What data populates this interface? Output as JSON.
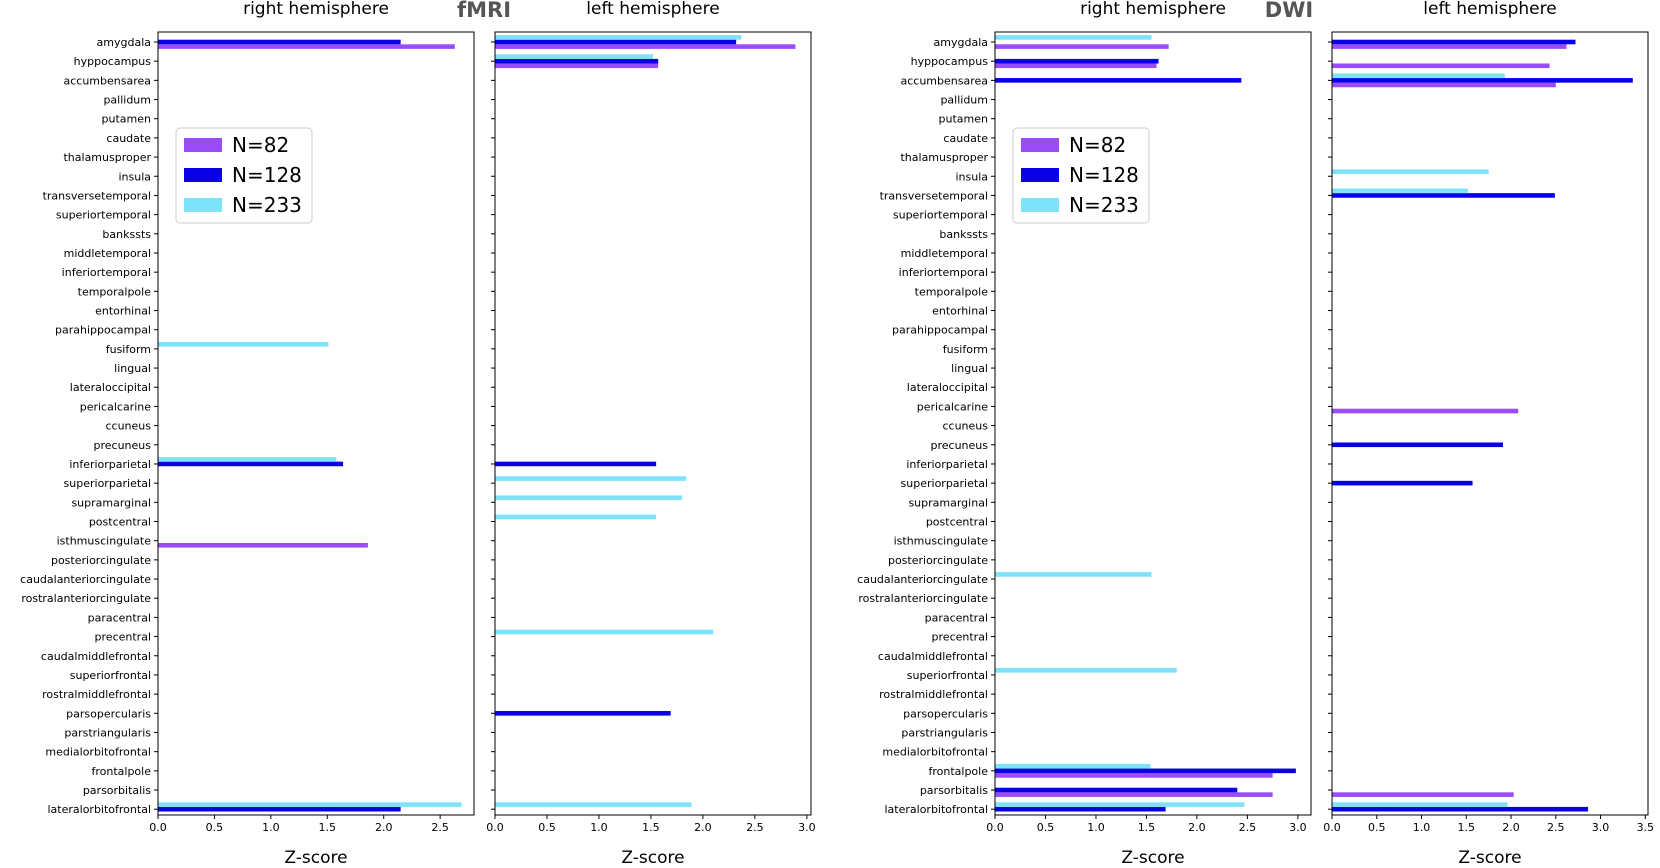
{
  "colors": {
    "N=82": "#9a4cf5",
    "N=128": "#0a00e8",
    "N=233": "#7de3fb"
  },
  "series_names": [
    "N=82",
    "N=128",
    "N=233"
  ],
  "regions": [
    "amygdala",
    "hyppocampus",
    "accumbensarea",
    "pallidum",
    "putamen",
    "caudate",
    "thalamusproper",
    "insula",
    "transversetemporal",
    "superiortemporal",
    "bankssts",
    "middletemporal",
    "inferiortemporal",
    "temporalpole",
    "entorhinal",
    "parahippocampal",
    "fusiform",
    "lingual",
    "lateraloccipital",
    "pericalcarine",
    "ccuneus",
    "precuneus",
    "inferiorparietal",
    "superiorparietal",
    "supramarginal",
    "postcentral",
    "isthmuscingulate",
    "posteriorcingulate",
    "caudalanteriorcingulate",
    "rostralanteriorcingulate",
    "paracentral",
    "precentral",
    "caudalmiddlefrontal",
    "superiorfrontal",
    "rostralmiddlefrontal",
    "parsopercularis",
    "parstriangularis",
    "medialorbitofrontal",
    "frontalpole",
    "parsorbitalis",
    "lateralorbitofrontal"
  ],
  "group_titles": {
    "fmri": "fMRI",
    "dwi": "DWI"
  },
  "chart_data": [
    {
      "type": "bar",
      "orientation": "horizontal",
      "group": "fMRI",
      "title": "right hemisphere",
      "xlabel": "Z-score",
      "xlim": [
        0,
        2.8
      ],
      "xticks": [
        0.0,
        0.5,
        1.0,
        1.5,
        2.0,
        2.5
      ],
      "show_ylabels": true,
      "legend": true,
      "bars": [
        {
          "region": "amygdala",
          "series": "N=82",
          "value": 2.63
        },
        {
          "region": "amygdala",
          "series": "N=128",
          "value": 2.15
        },
        {
          "region": "fusiform",
          "series": "N=233",
          "value": 1.51
        },
        {
          "region": "inferiorparietal",
          "series": "N=128",
          "value": 1.64
        },
        {
          "region": "inferiorparietal",
          "series": "N=233",
          "value": 1.58
        },
        {
          "region": "isthmuscingulate",
          "series": "N=82",
          "value": 1.86
        },
        {
          "region": "lateralorbitofrontal",
          "series": "N=128",
          "value": 2.15
        },
        {
          "region": "lateralorbitofrontal",
          "series": "N=233",
          "value": 2.69
        }
      ]
    },
    {
      "type": "bar",
      "orientation": "horizontal",
      "group": "fMRI",
      "title": "left hemisphere",
      "xlabel": "Z-score",
      "xlim": [
        0,
        3.04
      ],
      "xticks": [
        0.0,
        0.5,
        1.0,
        1.5,
        2.0,
        2.5,
        3.0
      ],
      "show_ylabels": false,
      "legend": false,
      "bars": [
        {
          "region": "amygdala",
          "series": "N=82",
          "value": 2.89
        },
        {
          "region": "amygdala",
          "series": "N=128",
          "value": 2.32
        },
        {
          "region": "amygdala",
          "series": "N=233",
          "value": 2.37
        },
        {
          "region": "hyppocampus",
          "series": "N=82",
          "value": 1.57
        },
        {
          "region": "hyppocampus",
          "series": "N=128",
          "value": 1.57
        },
        {
          "region": "hyppocampus",
          "series": "N=233",
          "value": 1.52
        },
        {
          "region": "inferiorparietal",
          "series": "N=128",
          "value": 1.55
        },
        {
          "region": "superiorparietal",
          "series": "N=233",
          "value": 1.84
        },
        {
          "region": "supramarginal",
          "series": "N=233",
          "value": 1.8
        },
        {
          "region": "postcentral",
          "series": "N=233",
          "value": 1.55
        },
        {
          "region": "precentral",
          "series": "N=233",
          "value": 2.1
        },
        {
          "region": "parsopercularis",
          "series": "N=128",
          "value": 1.69
        },
        {
          "region": "lateralorbitofrontal",
          "series": "N=233",
          "value": 1.89
        }
      ]
    },
    {
      "type": "bar",
      "orientation": "horizontal",
      "group": "DWI",
      "title": "right hemisphere",
      "xlabel": "Z-score",
      "xlim": [
        0,
        3.13
      ],
      "xticks": [
        0.0,
        0.5,
        1.0,
        1.5,
        2.0,
        2.5,
        3.0
      ],
      "show_ylabels": true,
      "legend": true,
      "bars": [
        {
          "region": "amygdala",
          "series": "N=82",
          "value": 1.72
        },
        {
          "region": "amygdala",
          "series": "N=233",
          "value": 1.55
        },
        {
          "region": "hyppocampus",
          "series": "N=82",
          "value": 1.6
        },
        {
          "region": "hyppocampus",
          "series": "N=128",
          "value": 1.62
        },
        {
          "region": "accumbensarea",
          "series": "N=128",
          "value": 2.44
        },
        {
          "region": "caudalanteriorcingulate",
          "series": "N=233",
          "value": 1.55
        },
        {
          "region": "superiorfrontal",
          "series": "N=233",
          "value": 1.8
        },
        {
          "region": "frontalpole",
          "series": "N=82",
          "value": 2.75
        },
        {
          "region": "frontalpole",
          "series": "N=128",
          "value": 2.98
        },
        {
          "region": "frontalpole",
          "series": "N=233",
          "value": 1.54
        },
        {
          "region": "parsorbitalis",
          "series": "N=82",
          "value": 2.75
        },
        {
          "region": "parsorbitalis",
          "series": "N=128",
          "value": 2.4
        },
        {
          "region": "lateralorbitofrontal",
          "series": "N=128",
          "value": 1.69
        },
        {
          "region": "lateralorbitofrontal",
          "series": "N=233",
          "value": 2.47
        }
      ]
    },
    {
      "type": "bar",
      "orientation": "horizontal",
      "group": "DWI",
      "title": "left hemisphere",
      "xlabel": "Z-score",
      "xlim": [
        0,
        3.53
      ],
      "xticks": [
        0.0,
        0.5,
        1.0,
        1.5,
        2.0,
        2.5,
        3.0,
        3.5
      ],
      "show_ylabels": false,
      "legend": false,
      "bars": [
        {
          "region": "amygdala",
          "series": "N=82",
          "value": 2.62
        },
        {
          "region": "amygdala",
          "series": "N=128",
          "value": 2.72
        },
        {
          "region": "hyppocampus",
          "series": "N=82",
          "value": 2.43
        },
        {
          "region": "accumbensarea",
          "series": "N=82",
          "value": 2.5
        },
        {
          "region": "accumbensarea",
          "series": "N=128",
          "value": 3.36
        },
        {
          "region": "accumbensarea",
          "series": "N=233",
          "value": 1.93
        },
        {
          "region": "insula",
          "series": "N=233",
          "value": 1.75
        },
        {
          "region": "transversetemporal",
          "series": "N=128",
          "value": 2.49
        },
        {
          "region": "transversetemporal",
          "series": "N=233",
          "value": 1.52
        },
        {
          "region": "pericalcarine",
          "series": "N=82",
          "value": 2.08
        },
        {
          "region": "precuneus",
          "series": "N=128",
          "value": 1.91
        },
        {
          "region": "superiorparietal",
          "series": "N=128",
          "value": 1.57
        },
        {
          "region": "parsorbitalis",
          "series": "N=82",
          "value": 2.03
        },
        {
          "region": "lateralorbitofrontal",
          "series": "N=128",
          "value": 2.86
        },
        {
          "region": "lateralorbitofrontal",
          "series": "N=233",
          "value": 1.96
        }
      ]
    }
  ]
}
